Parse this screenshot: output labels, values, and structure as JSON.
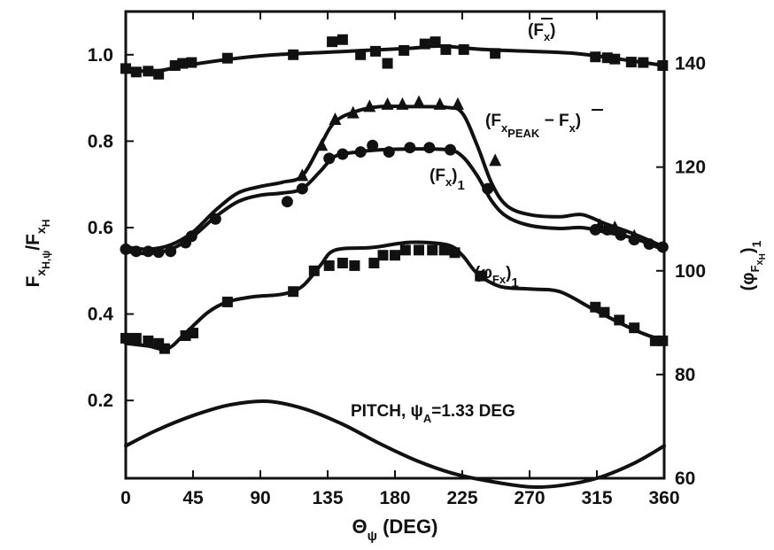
{
  "chart_data": {
    "type": "line",
    "xlabel": "Θψ (DEG)",
    "xlabel_parts": {
      "main": "Θ",
      "sub": "ψ",
      "rest": " (DEG)"
    },
    "ylabel_left": "Fx H,ψ / F̄x H",
    "ylabel_left_parts": {
      "f1": "F",
      "s1": "x",
      "s2": "H,ψ",
      "slash": "/",
      "f2": "F",
      "s3": "x",
      "s4": "H"
    },
    "ylabel_right": "(φFx H)1",
    "ylabel_right_parts": {
      "open": "(φ",
      "s1": "F",
      "s2": "x",
      "s3": "H",
      "close": ")",
      "s4": "1"
    },
    "xlim": [
      0,
      360
    ],
    "ylim_left": [
      0.02,
      1.1
    ],
    "ylim_right": [
      60,
      150
    ],
    "x_ticks": [
      "0",
      "45",
      "90",
      "135",
      "180",
      "225",
      "270",
      "315",
      "360"
    ],
    "y_left_ticks": [
      "0.2",
      "0.4",
      "0.6",
      "0.8",
      "1.0"
    ],
    "y_right_ticks": [
      "60",
      "80",
      "100",
      "120",
      "140"
    ],
    "grid": false,
    "legend": "none",
    "annotations": {
      "mean_fx": {
        "open": "(F",
        "sub": "x",
        "close": ")"
      },
      "peak": {
        "open": "(F",
        "sub1": "x",
        "sub2": "PEAK",
        "rest": " − F",
        "sub3": "x",
        "close": ")"
      },
      "fx1": {
        "open": "(F",
        "sub1": "x",
        "close": ")",
        "sub2": "1"
      },
      "phi": {
        "open": "(φ",
        "sub1": "Fx",
        "close": ")",
        "sub2": "1"
      },
      "pitch": {
        "text": "PITCH, ψ",
        "sub": "A",
        "rest": "=1.33 DEG"
      }
    },
    "series": [
      {
        "key": "mean_fx",
        "axis": "left",
        "marker": "square",
        "curve": [
          [
            0,
            0.965
          ],
          [
            20,
            0.962
          ],
          [
            40,
            0.975
          ],
          [
            70,
            0.99
          ],
          [
            100,
            1.0
          ],
          [
            130,
            1.005
          ],
          [
            160,
            1.01
          ],
          [
            190,
            1.015
          ],
          [
            210,
            1.02
          ],
          [
            240,
            1.012
          ],
          [
            270,
            1.008
          ],
          [
            300,
            1.003
          ],
          [
            330,
            0.99
          ],
          [
            360,
            0.975
          ]
        ],
        "points": [
          [
            0,
            0.968
          ],
          [
            7,
            0.96
          ],
          [
            15,
            0.962
          ],
          [
            22,
            0.955
          ],
          [
            33,
            0.975
          ],
          [
            38,
            0.98
          ],
          [
            44,
            0.982
          ],
          [
            68,
            0.992
          ],
          [
            112,
            1.0
          ],
          [
            138,
            1.03
          ],
          [
            145,
            1.035
          ],
          [
            157,
            1.0
          ],
          [
            167,
            1.008
          ],
          [
            175,
            0.98
          ],
          [
            186,
            1.01
          ],
          [
            200,
            1.025
          ],
          [
            207,
            1.03
          ],
          [
            214,
            1.012
          ],
          [
            226,
            1.012
          ],
          [
            247,
            1.003
          ],
          [
            314,
            0.995
          ],
          [
            322,
            0.993
          ],
          [
            327,
            0.99
          ],
          [
            338,
            0.983
          ],
          [
            346,
            0.982
          ],
          [
            359,
            0.975
          ]
        ]
      },
      {
        "key": "peak",
        "axis": "left",
        "marker": "triangle",
        "curve": [
          [
            0,
            0.555
          ],
          [
            15,
            0.55
          ],
          [
            30,
            0.56
          ],
          [
            45,
            0.59
          ],
          [
            60,
            0.64
          ],
          [
            75,
            0.68
          ],
          [
            90,
            0.695
          ],
          [
            105,
            0.705
          ],
          [
            118,
            0.72
          ],
          [
            130,
            0.79
          ],
          [
            140,
            0.845
          ],
          [
            155,
            0.87
          ],
          [
            170,
            0.88
          ],
          [
            190,
            0.88
          ],
          [
            215,
            0.878
          ],
          [
            225,
            0.865
          ],
          [
            235,
            0.79
          ],
          [
            245,
            0.7
          ],
          [
            255,
            0.65
          ],
          [
            270,
            0.63
          ],
          [
            290,
            0.625
          ],
          [
            305,
            0.63
          ],
          [
            320,
            0.61
          ],
          [
            340,
            0.585
          ],
          [
            360,
            0.555
          ]
        ],
        "points": [
          [
            118,
            0.72
          ],
          [
            131,
            0.79
          ],
          [
            140,
            0.85
          ],
          [
            152,
            0.865
          ],
          [
            163,
            0.88
          ],
          [
            175,
            0.885
          ],
          [
            185,
            0.885
          ],
          [
            196,
            0.89
          ],
          [
            210,
            0.885
          ],
          [
            222,
            0.885
          ],
          [
            247,
            0.755
          ],
          [
            317,
            0.605
          ],
          [
            327,
            0.6
          ],
          [
            340,
            0.58
          ]
        ]
      },
      {
        "key": "fx1",
        "axis": "left",
        "marker": "circle",
        "curve": [
          [
            0,
            0.545
          ],
          [
            15,
            0.54
          ],
          [
            30,
            0.55
          ],
          [
            45,
            0.58
          ],
          [
            60,
            0.625
          ],
          [
            75,
            0.66
          ],
          [
            90,
            0.675
          ],
          [
            105,
            0.68
          ],
          [
            118,
            0.69
          ],
          [
            130,
            0.73
          ],
          [
            140,
            0.765
          ],
          [
            155,
            0.775
          ],
          [
            170,
            0.78
          ],
          [
            190,
            0.782
          ],
          [
            215,
            0.78
          ],
          [
            225,
            0.765
          ],
          [
            235,
            0.72
          ],
          [
            245,
            0.66
          ],
          [
            255,
            0.625
          ],
          [
            270,
            0.605
          ],
          [
            290,
            0.598
          ],
          [
            305,
            0.6
          ],
          [
            320,
            0.59
          ],
          [
            340,
            0.575
          ],
          [
            360,
            0.548
          ]
        ],
        "points": [
          [
            0,
            0.55
          ],
          [
            7,
            0.545
          ],
          [
            15,
            0.545
          ],
          [
            22,
            0.543
          ],
          [
            30,
            0.545
          ],
          [
            40,
            0.565
          ],
          [
            44,
            0.58
          ],
          [
            60,
            0.62
          ],
          [
            108,
            0.66
          ],
          [
            118,
            0.69
          ],
          [
            136,
            0.76
          ],
          [
            145,
            0.77
          ],
          [
            157,
            0.775
          ],
          [
            165,
            0.79
          ],
          [
            176,
            0.775
          ],
          [
            190,
            0.785
          ],
          [
            203,
            0.785
          ],
          [
            217,
            0.78
          ],
          [
            242,
            0.69
          ],
          [
            314,
            0.595
          ],
          [
            322,
            0.595
          ],
          [
            331,
            0.583
          ],
          [
            340,
            0.572
          ],
          [
            350,
            0.562
          ],
          [
            359,
            0.555
          ]
        ]
      },
      {
        "key": "phi",
        "axis": "right",
        "marker": "square",
        "curve": [
          [
            0,
            86
          ],
          [
            15,
            85.5
          ],
          [
            28,
            85
          ],
          [
            40,
            88
          ],
          [
            55,
            92
          ],
          [
            68,
            94
          ],
          [
            85,
            95
          ],
          [
            105,
            95.5
          ],
          [
            118,
            97
          ],
          [
            130,
            101
          ],
          [
            140,
            104
          ],
          [
            165,
            104.5
          ],
          [
            190,
            105.5
          ],
          [
            215,
            105
          ],
          [
            225,
            103
          ],
          [
            235,
            99.5
          ],
          [
            250,
            97
          ],
          [
            270,
            96.5
          ],
          [
            290,
            96
          ],
          [
            310,
            93
          ],
          [
            330,
            90
          ],
          [
            345,
            88
          ],
          [
            360,
            86.5
          ]
        ],
        "points": [
          [
            0,
            87
          ],
          [
            7,
            87
          ],
          [
            15,
            86.5
          ],
          [
            22,
            86
          ],
          [
            26,
            85
          ],
          [
            40,
            87.5
          ],
          [
            45,
            88
          ],
          [
            68,
            94
          ],
          [
            112,
            96
          ],
          [
            126,
            100
          ],
          [
            136,
            101
          ],
          [
            145,
            101.5
          ],
          [
            153,
            101
          ],
          [
            166,
            101.5
          ],
          [
            172,
            103
          ],
          [
            180,
            103
          ],
          [
            187,
            104
          ],
          [
            196,
            104
          ],
          [
            205,
            104
          ],
          [
            213,
            104
          ],
          [
            220,
            103.5
          ],
          [
            237,
            99
          ],
          [
            314,
            93
          ],
          [
            320,
            92
          ],
          [
            330,
            90.5
          ],
          [
            340,
            89
          ],
          [
            354,
            86.5
          ],
          [
            359,
            86.5
          ]
        ]
      },
      {
        "key": "pitch",
        "axis": "left",
        "marker": "none",
        "curve": [
          [
            0,
            0.095
          ],
          [
            20,
            0.13
          ],
          [
            45,
            0.165
          ],
          [
            70,
            0.19
          ],
          [
            95,
            0.198
          ],
          [
            120,
            0.18
          ],
          [
            145,
            0.145
          ],
          [
            170,
            0.1
          ],
          [
            195,
            0.06
          ],
          [
            220,
            0.03
          ],
          [
            245,
            0.012
          ],
          [
            270,
            0.0
          ],
          [
            290,
            0.003
          ],
          [
            315,
            0.02
          ],
          [
            340,
            0.055
          ],
          [
            360,
            0.095
          ]
        ]
      }
    ]
  }
}
